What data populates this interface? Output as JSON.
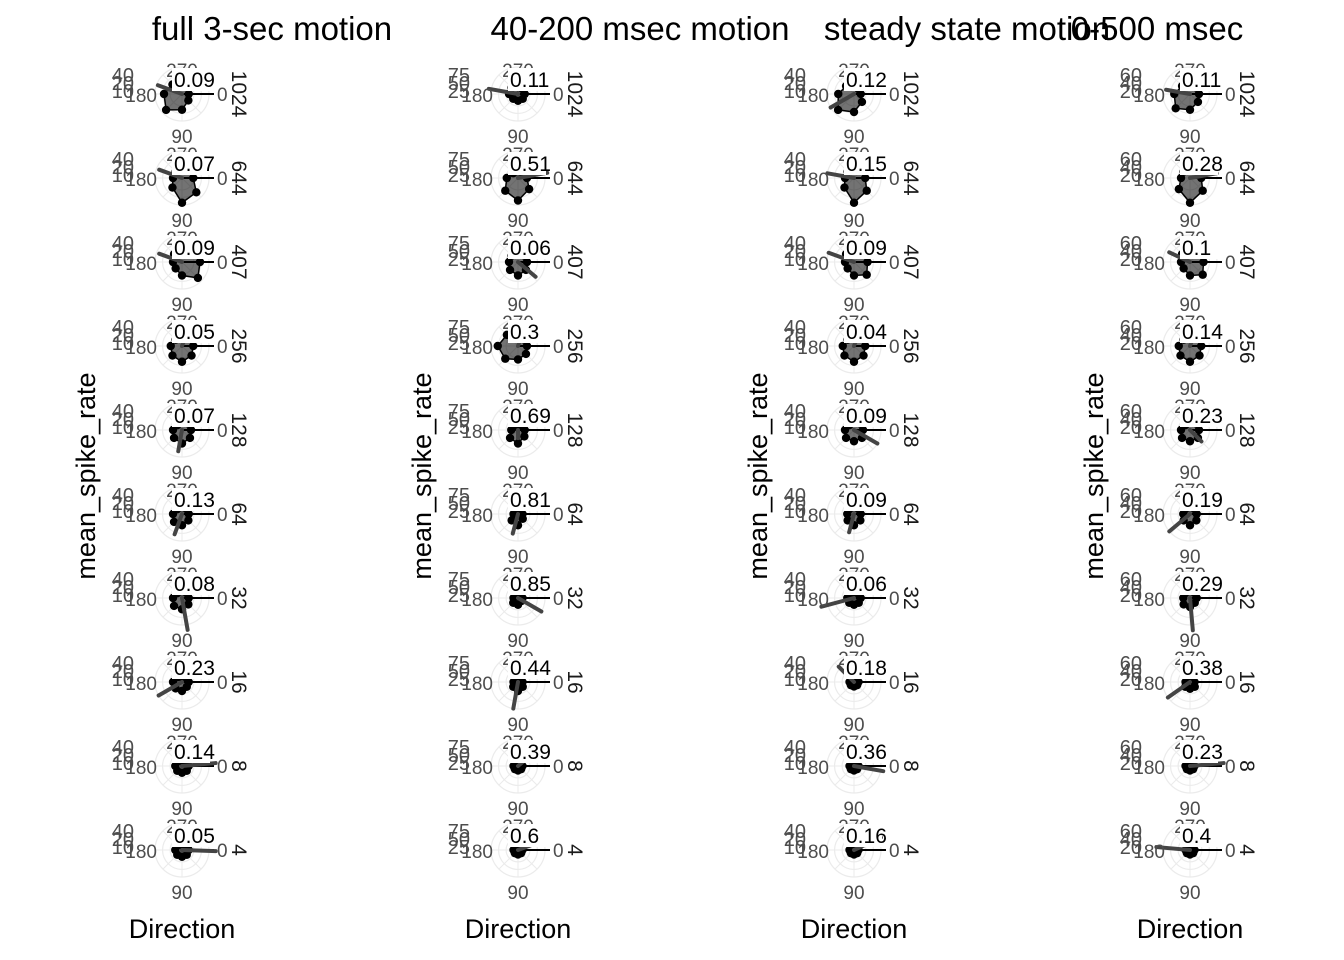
{
  "chart_data": [
    {
      "type": "polar",
      "title": "full 3-sec motion",
      "xlabel": "Direction",
      "ylabel": "mean_spike_rate",
      "radial_ticks": [
        "40",
        "20",
        "10"
      ],
      "angle_ticks": [
        "270",
        "180",
        "0",
        "90"
      ],
      "rows": [
        {
          "facet": "1024",
          "value_label": "0.09",
          "vector": {
            "angle": 200,
            "length": 0.95
          },
          "rates": [
            3,
            4,
            7,
            10,
            8,
            6,
            5,
            4
          ]
        },
        {
          "facet": "644",
          "value_label": "0.07",
          "vector": {
            "angle": 200,
            "length": 0.9
          },
          "rates": [
            5,
            9,
            11,
            6,
            4,
            4,
            6,
            8
          ]
        },
        {
          "facet": "407",
          "value_label": "0.09",
          "vector": {
            "angle": 200,
            "length": 0.9
          },
          "rates": [
            8,
            10,
            6,
            4,
            4,
            5,
            6,
            7
          ]
        },
        {
          "facet": "256",
          "value_label": "0.05",
          "vector": {
            "angle": 290,
            "length": 0.75
          },
          "rates": [
            5,
            6,
            7,
            6,
            5,
            4,
            5,
            6
          ]
        },
        {
          "facet": "128",
          "value_label": "0.07",
          "vector": {
            "angle": 100,
            "length": 0.8
          },
          "rates": [
            4,
            5,
            6,
            5,
            4,
            3,
            4,
            4
          ]
        },
        {
          "facet": "64",
          "value_label": "0.13",
          "vector": {
            "angle": 110,
            "length": 0.8
          },
          "rates": [
            3,
            4,
            5,
            5,
            4,
            3,
            3,
            3
          ]
        },
        {
          "facet": "32",
          "value_label": "0.08",
          "vector": {
            "angle": 80,
            "length": 1.2
          },
          "rates": [
            3,
            4,
            5,
            5,
            4,
            3,
            3,
            3
          ]
        },
        {
          "facet": "16",
          "value_label": "0.23",
          "vector": {
            "angle": 150,
            "length": 1.0
          },
          "rates": [
            3,
            3,
            4,
            4,
            4,
            3,
            2,
            2
          ]
        },
        {
          "facet": "8",
          "value_label": "0.14",
          "vector": {
            "angle": 355,
            "length": 1.25
          },
          "rates": [
            3,
            3,
            3,
            3,
            3,
            3,
            2,
            2
          ]
        },
        {
          "facet": "4",
          "value_label": "0.05",
          "vector": {
            "angle": 2,
            "length": 1.25
          },
          "rates": [
            3,
            3,
            3,
            3,
            3,
            3,
            2,
            2
          ]
        }
      ]
    },
    {
      "type": "polar",
      "title": "40-200 msec motion",
      "xlabel": "Direction",
      "ylabel": "mean_spike_rate",
      "radial_ticks": [
        "75",
        "50",
        "25"
      ],
      "angle_ticks": [
        "270",
        "180",
        "0",
        "90"
      ],
      "rows": [
        {
          "facet": "1024",
          "value_label": "0.11",
          "vector": {
            "angle": 190,
            "length": 1.1
          },
          "rates": [
            3,
            3,
            3,
            3,
            4,
            4,
            3,
            3
          ]
        },
        {
          "facet": "644",
          "value_label": "0.51",
          "vector": {
            "angle": 350,
            "length": 1.1
          },
          "rates": [
            4,
            7,
            10,
            8,
            5,
            3,
            3,
            3
          ]
        },
        {
          "facet": "407",
          "value_label": "0.06",
          "vector": {
            "angle": 40,
            "length": 0.85
          },
          "rates": [
            4,
            5,
            6,
            5,
            4,
            4,
            4,
            4
          ]
        },
        {
          "facet": "256",
          "value_label": "0.3",
          "vector": {
            "angle": 290,
            "length": 0.85
          },
          "rates": [
            4,
            5,
            6,
            8,
            9,
            7,
            5,
            4
          ]
        },
        {
          "facet": "128",
          "value_label": "0.69",
          "vector": {
            "angle": 90,
            "length": 0.3
          },
          "rates": [
            3,
            4,
            6,
            5,
            3,
            2,
            2,
            2
          ]
        },
        {
          "facet": "64",
          "value_label": "0.81",
          "vector": {
            "angle": 105,
            "length": 0.75
          },
          "rates": [
            2,
            3,
            5,
            4,
            2,
            2,
            2,
            2
          ]
        },
        {
          "facet": "32",
          "value_label": "0.85",
          "vector": {
            "angle": 30,
            "length": 1.0
          },
          "rates": [
            2,
            2,
            3,
            3,
            2,
            2,
            2,
            2
          ]
        },
        {
          "facet": "16",
          "value_label": "0.44",
          "vector": {
            "angle": 100,
            "length": 1.0
          },
          "rates": [
            2,
            3,
            4,
            3,
            2,
            2,
            2,
            2
          ]
        },
        {
          "facet": "8",
          "value_label": "0.39",
          "vector": {
            "angle": 320,
            "length": 0.8
          },
          "rates": [
            2,
            2,
            2,
            2,
            2,
            2,
            2,
            2
          ]
        },
        {
          "facet": "4",
          "value_label": "0.6",
          "vector": {
            "angle": 340,
            "length": 0.5
          },
          "rates": [
            2,
            2,
            2,
            2,
            2,
            2,
            2,
            2
          ]
        }
      ]
    },
    {
      "type": "polar",
      "title": "steady state motion",
      "xlabel": "Direction",
      "ylabel": "mean_spike_rate",
      "radial_ticks": [
        "40",
        "20",
        "10"
      ],
      "angle_ticks": [
        "270",
        "180",
        "0",
        "90"
      ],
      "rows": [
        {
          "facet": "1024",
          "value_label": "0.12",
          "vector": {
            "angle": 150,
            "length": 1.0
          },
          "rates": [
            3,
            5,
            8,
            10,
            7,
            5,
            4,
            3
          ]
        },
        {
          "facet": "644",
          "value_label": "0.15",
          "vector": {
            "angle": 190,
            "length": 1.0
          },
          "rates": [
            5,
            8,
            11,
            6,
            4,
            4,
            6,
            8
          ]
        },
        {
          "facet": "407",
          "value_label": "0.09",
          "vector": {
            "angle": 200,
            "length": 1.0
          },
          "rates": [
            6,
            8,
            6,
            4,
            4,
            5,
            6,
            6
          ]
        },
        {
          "facet": "256",
          "value_label": "0.04",
          "vector": {
            "angle": 290,
            "length": 0.75
          },
          "rates": [
            5,
            6,
            7,
            6,
            5,
            4,
            5,
            6
          ]
        },
        {
          "facet": "128",
          "value_label": "0.09",
          "vector": {
            "angle": 30,
            "length": 1.0
          },
          "rates": [
            4,
            5,
            5,
            5,
            4,
            3,
            4,
            4
          ]
        },
        {
          "facet": "64",
          "value_label": "0.09",
          "vector": {
            "angle": 105,
            "length": 0.7
          },
          "rates": [
            3,
            4,
            5,
            4,
            3,
            3,
            3,
            3
          ]
        },
        {
          "facet": "32",
          "value_label": "0.06",
          "vector": {
            "angle": 165,
            "length": 1.25
          },
          "rates": [
            3,
            3,
            3,
            3,
            3,
            3,
            2,
            2
          ]
        },
        {
          "facet": "16",
          "value_label": "0.18",
          "vector": {
            "angle": 225,
            "length": 0.8
          },
          "rates": [
            2,
            2,
            2,
            2,
            2,
            2,
            2,
            2
          ]
        },
        {
          "facet": "8",
          "value_label": "0.36",
          "vector": {
            "angle": 10,
            "length": 1.1
          },
          "rates": [
            2,
            2,
            2,
            2,
            2,
            2,
            2,
            2
          ]
        },
        {
          "facet": "4",
          "value_label": "0.16",
          "vector": {
            "angle": 335,
            "length": 1.1
          },
          "rates": [
            2,
            2,
            2,
            2,
            2,
            2,
            2,
            2
          ]
        }
      ]
    },
    {
      "type": "polar",
      "title": "0-500 msec",
      "xlabel": "Direction",
      "ylabel": "mean_spike_rate",
      "radial_ticks": [
        "60",
        "40",
        "20"
      ],
      "angle_ticks": [
        "270",
        "180",
        "0",
        "90"
      ],
      "rows": [
        {
          "facet": "1024",
          "value_label": "0.11",
          "vector": {
            "angle": 190,
            "length": 0.9
          },
          "rates": [
            4,
            5,
            7,
            9,
            7,
            5,
            4,
            4
          ]
        },
        {
          "facet": "644",
          "value_label": "0.28",
          "vector": {
            "angle": 350,
            "length": 1.0
          },
          "rates": [
            5,
            8,
            11,
            7,
            4,
            4,
            5,
            6
          ]
        },
        {
          "facet": "407",
          "value_label": "0.1",
          "vector": {
            "angle": 205,
            "length": 0.85
          },
          "rates": [
            6,
            8,
            6,
            4,
            4,
            5,
            8,
            7
          ]
        },
        {
          "facet": "256",
          "value_label": "0.14",
          "vector": {
            "angle": 290,
            "length": 0.75
          },
          "rates": [
            5,
            6,
            7,
            6,
            5,
            4,
            5,
            6
          ]
        },
        {
          "facet": "128",
          "value_label": "0.23",
          "vector": {
            "angle": 45,
            "length": 0.6
          },
          "rates": [
            4,
            5,
            5,
            5,
            4,
            3,
            4,
            4
          ]
        },
        {
          "facet": "64",
          "value_label": "0.19",
          "vector": {
            "angle": 140,
            "length": 1.0
          },
          "rates": [
            3,
            4,
            5,
            4,
            3,
            3,
            3,
            3
          ]
        },
        {
          "facet": "32",
          "value_label": "0.29",
          "vector": {
            "angle": 85,
            "length": 1.2
          },
          "rates": [
            3,
            3,
            4,
            4,
            3,
            3,
            3,
            3
          ]
        },
        {
          "facet": "16",
          "value_label": "0.38",
          "vector": {
            "angle": 145,
            "length": 1.0
          },
          "rates": [
            2,
            3,
            3,
            3,
            2,
            2,
            2,
            2
          ]
        },
        {
          "facet": "8",
          "value_label": "0.23",
          "vector": {
            "angle": 355,
            "length": 1.25
          },
          "rates": [
            2,
            2,
            2,
            2,
            2,
            2,
            2,
            2
          ]
        },
        {
          "facet": "4",
          "value_label": "0.4",
          "vector": {
            "angle": 185,
            "length": 1.25
          },
          "rates": [
            2,
            2,
            2,
            2,
            2,
            2,
            2,
            2
          ]
        }
      ]
    }
  ]
}
